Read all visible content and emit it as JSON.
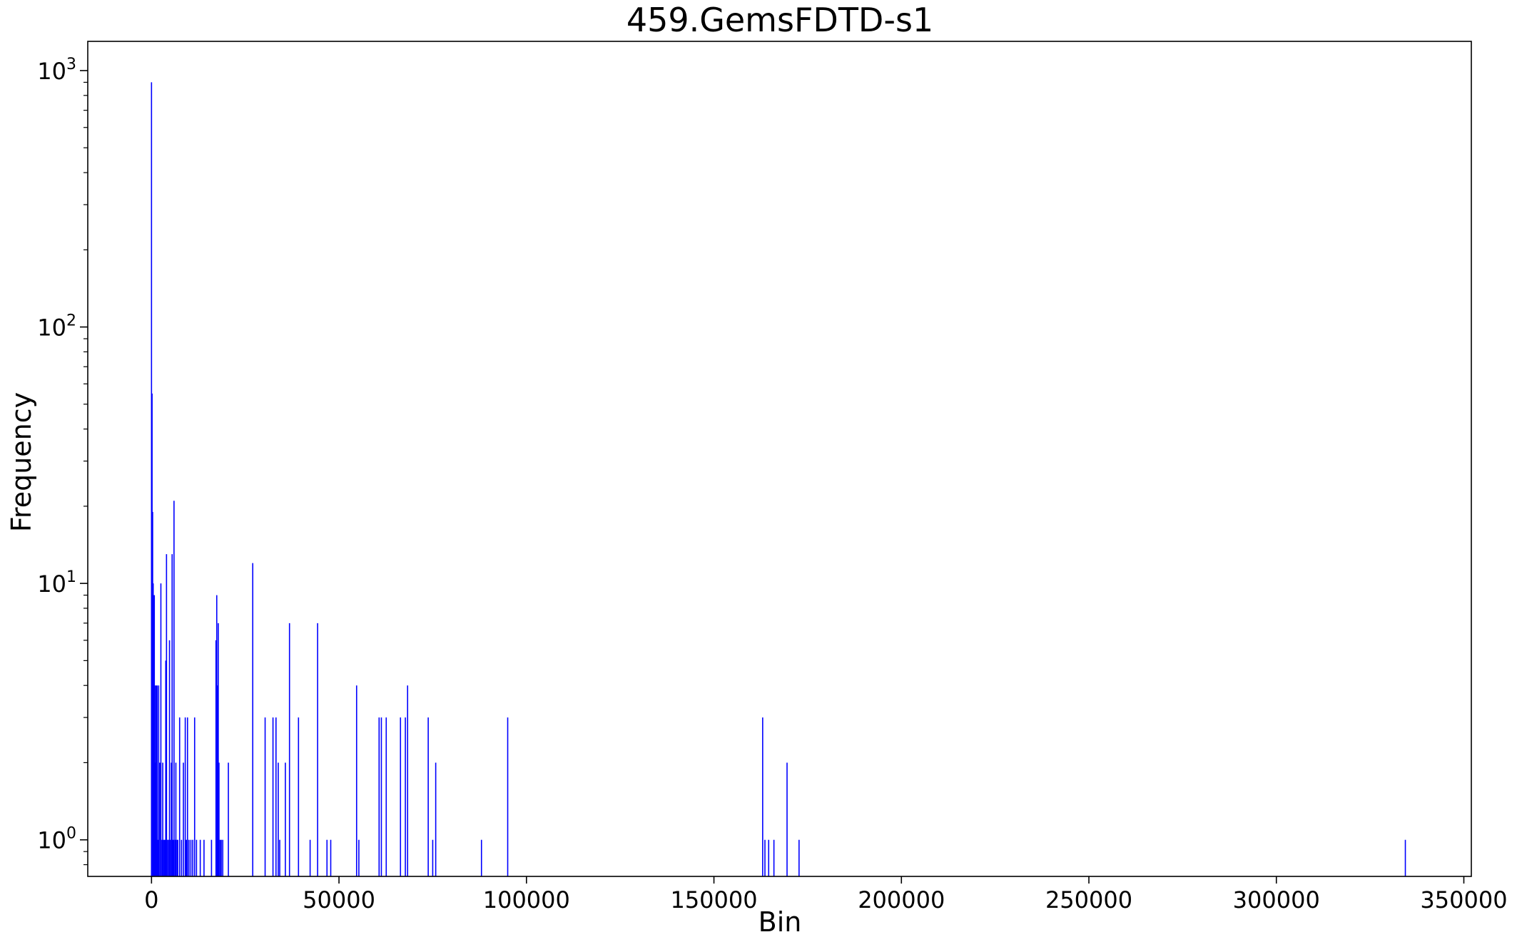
{
  "chart_data": {
    "type": "bar",
    "title": "459.GemsFDTD-s1",
    "xlabel": "Bin",
    "ylabel": "Frequency",
    "yscale": "log",
    "xlim": [
      -17000,
      352000
    ],
    "ylim": [
      0.72,
      1300
    ],
    "x_ticks": [
      0,
      50000,
      100000,
      150000,
      200000,
      250000,
      300000,
      350000
    ],
    "x_tick_labels": [
      "0",
      "50000",
      "100000",
      "150000",
      "200000",
      "250000",
      "300000",
      "350000"
    ],
    "y_ticks": [
      1,
      10,
      100,
      1000
    ],
    "y_tick_base": "10",
    "y_tick_exponents": [
      "0",
      "1",
      "2",
      "3"
    ],
    "bar_color": "#0000ff",
    "grid": false,
    "legend": "none",
    "x": [
      0,
      150,
      300,
      450,
      600,
      750,
      900,
      1050,
      1200,
      1350,
      1500,
      1700,
      1900,
      2200,
      2500,
      2800,
      3000,
      3200,
      3500,
      3800,
      4000,
      4300,
      4500,
      4800,
      5000,
      5300,
      5500,
      5800,
      6000,
      6300,
      6500,
      6800,
      7000,
      7500,
      8000,
      8500,
      9000,
      9300,
      9600,
      10000,
      10500,
      11000,
      11500,
      12000,
      13000,
      14000,
      16000,
      17200,
      17400,
      17600,
      17800,
      18000,
      18300,
      18600,
      19000,
      20500,
      27000,
      30300,
      32400,
      33200,
      33800,
      34200,
      35700,
      36800,
      39200,
      42300,
      44300,
      46800,
      47800,
      54700,
      55300,
      60700,
      61300,
      62600,
      66400,
      67700,
      68300,
      73800,
      75000,
      75800,
      88000,
      95000,
      163000,
      163600,
      164600,
      166000,
      169500,
      172700,
      334400
    ],
    "values": [
      900,
      55,
      19,
      10,
      7,
      9,
      4,
      2,
      4,
      1,
      4,
      1,
      4,
      2,
      10,
      1,
      2,
      1,
      1,
      5,
      13,
      1,
      1,
      6,
      1,
      2,
      13,
      1,
      21,
      1,
      2,
      1,
      1,
      3,
      1,
      2,
      3,
      1,
      3,
      1,
      1,
      1,
      3,
      1,
      1,
      1,
      1,
      6,
      9,
      4,
      7,
      2,
      1,
      1,
      1,
      2,
      12,
      3,
      3,
      3,
      2,
      1,
      2,
      7,
      3,
      1,
      7,
      1,
      1,
      4,
      1,
      3,
      3,
      3,
      3,
      3,
      4,
      3,
      1,
      2,
      1,
      3,
      3,
      1,
      1,
      1,
      2,
      1,
      1
    ]
  }
}
